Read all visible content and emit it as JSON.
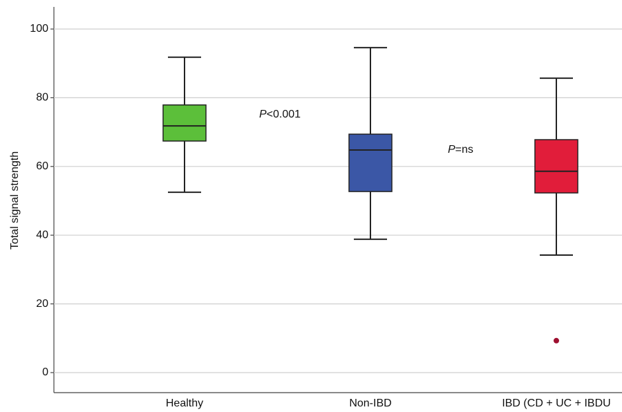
{
  "chart_data": {
    "type": "box",
    "y_label": "Total signal strength",
    "categories": [
      "Healthy",
      "Non-IBD",
      "IBD (CD + UC + IBDU"
    ],
    "colors": [
      "#5cbf3a",
      "#3b57a6",
      "#e11d3a"
    ],
    "outlier_color": "#9e1030",
    "boxes": [
      {
        "whisker_low": 52.5,
        "q1": 67.4,
        "median": 71.8,
        "q3": 77.9,
        "whisker_high": 91.8,
        "outliers": []
      },
      {
        "whisker_low": 38.8,
        "q1": 52.7,
        "median": 64.8,
        "q3": 69.4,
        "whisker_high": 94.6,
        "outliers": []
      },
      {
        "whisker_low": 34.2,
        "q1": 52.3,
        "median": 58.6,
        "q3": 67.8,
        "whisker_high": 85.7,
        "outliers": [
          9.3
        ]
      }
    ],
    "annotations": [
      {
        "italic": "P",
        "text": "<0.001"
      },
      {
        "italic": "P",
        "text": "=ns"
      }
    ],
    "ylim": [
      0,
      100
    ],
    "yticks": [
      0,
      20,
      40,
      60,
      80,
      100
    ],
    "grid": true
  }
}
